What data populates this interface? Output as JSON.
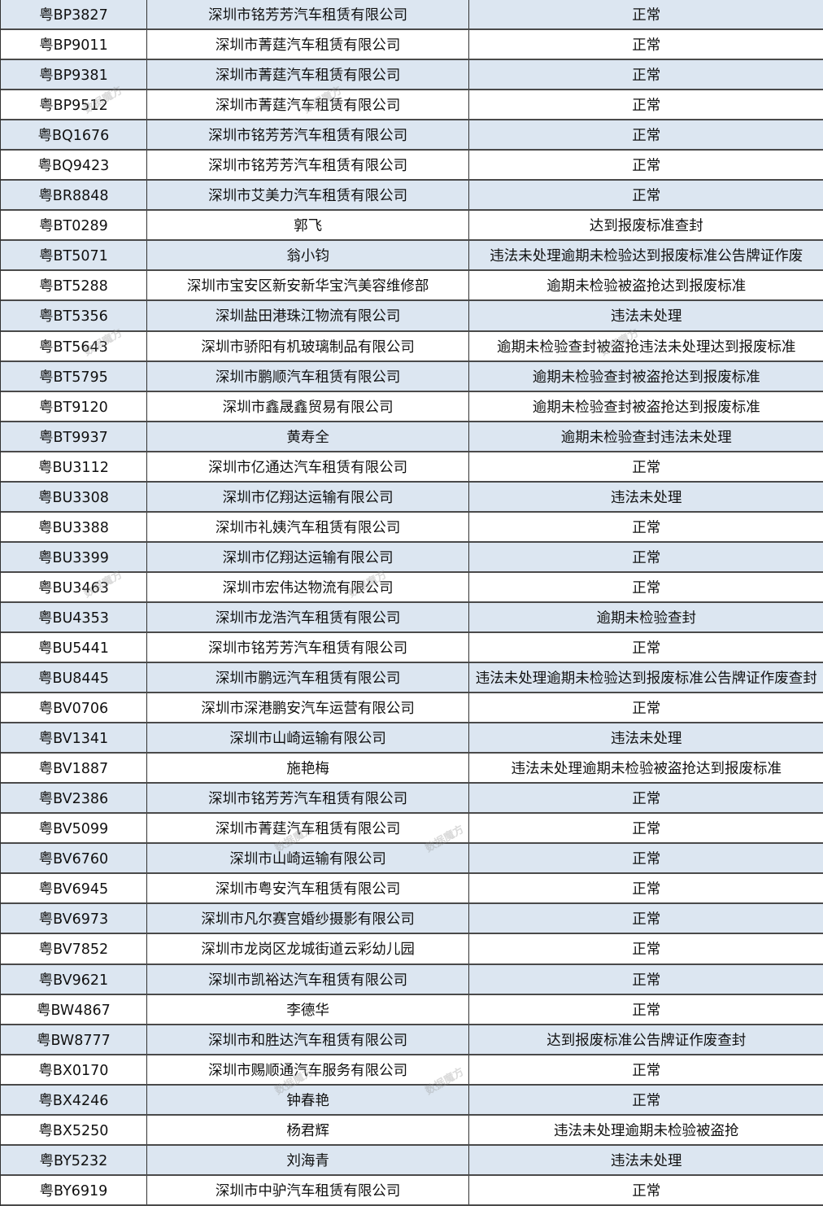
{
  "watermark": "数据魔方",
  "colors": {
    "band": "#dce6f1",
    "border": "#333333"
  },
  "rows": [
    [
      "粤BP3827",
      "深圳市铭芳芳汽车租赁有限公司",
      "正常"
    ],
    [
      "粤BP9011",
      "深圳市菁莛汽车租赁有限公司",
      "正常"
    ],
    [
      "粤BP9381",
      "深圳市菁莛汽车租赁有限公司",
      "正常"
    ],
    [
      "粤BP9512",
      "深圳市菁莛汽车租赁有限公司",
      "正常"
    ],
    [
      "粤BQ1676",
      "深圳市铭芳芳汽车租赁有限公司",
      "正常"
    ],
    [
      "粤BQ9423",
      "深圳市铭芳芳汽车租赁有限公司",
      "正常"
    ],
    [
      "粤BR8848",
      "深圳市艾美力汽车租赁有限公司",
      "正常"
    ],
    [
      "粤BT0289",
      "郭飞",
      "达到报废标准查封"
    ],
    [
      "粤BT5071",
      "翁小钧",
      "违法未处理逾期未检验达到报废标准公告牌证作废"
    ],
    [
      "粤BT5288",
      "深圳市宝安区新安新华宝汽美容维修部",
      "逾期未检验被盗抢达到报废标准"
    ],
    [
      "粤BT5356",
      "深圳盐田港珠江物流有限公司",
      "违法未处理"
    ],
    [
      "粤BT5643",
      "深圳市骄阳有机玻璃制品有限公司",
      "逾期未检验查封被盗抢违法未处理达到报废标准"
    ],
    [
      "粤BT5795",
      "深圳市鹏顺汽车租赁有限公司",
      "逾期未检验查封被盗抢达到报废标准"
    ],
    [
      "粤BT9120",
      "深圳市鑫晟鑫贸易有限公司",
      "逾期未检验查封被盗抢达到报废标准"
    ],
    [
      "粤BT9937",
      "黄寿全",
      "逾期未检验查封违法未处理"
    ],
    [
      "粤BU3112",
      "深圳市亿通达汽车租赁有限公司",
      "正常"
    ],
    [
      "粤BU3308",
      "深圳市亿翔达运输有限公司",
      "违法未处理"
    ],
    [
      "粤BU3388",
      "深圳市礼姨汽车租赁有限公司",
      "正常"
    ],
    [
      "粤BU3399",
      "深圳市亿翔达运输有限公司",
      "正常"
    ],
    [
      "粤BU3463",
      "深圳市宏伟达物流有限公司",
      "正常"
    ],
    [
      "粤BU4353",
      "深圳市龙浩汽车租赁有限公司",
      "逾期未检验查封"
    ],
    [
      "粤BU5441",
      "深圳市铭芳芳汽车租赁有限公司",
      "正常"
    ],
    [
      "粤BU8445",
      "深圳市鹏远汽车租赁有限公司",
      "违法未处理逾期未检验达到报废标准公告牌证作废查封"
    ],
    [
      "粤BV0706",
      "深圳市深港鹏安汽车运营有限公司",
      "正常"
    ],
    [
      "粤BV1341",
      "深圳市山崎运输有限公司",
      "违法未处理"
    ],
    [
      "粤BV1887",
      "施艳梅",
      "违法未处理逾期未检验被盗抢达到报废标准"
    ],
    [
      "粤BV2386",
      "深圳市铭芳芳汽车租赁有限公司",
      "正常"
    ],
    [
      "粤BV5099",
      "深圳市菁莛汽车租赁有限公司",
      "正常"
    ],
    [
      "粤BV6760",
      "深圳市山崎运输有限公司",
      "正常"
    ],
    [
      "粤BV6945",
      "深圳市粤安汽车租赁有限公司",
      "正常"
    ],
    [
      "粤BV6973",
      "深圳市凡尔赛宫婚纱摄影有限公司",
      "正常"
    ],
    [
      "粤BV7852",
      "深圳市龙岗区龙城街道云彩幼儿园",
      "正常"
    ],
    [
      "粤BV9621",
      "深圳市凯裕达汽车租赁有限公司",
      "正常"
    ],
    [
      "粤BW4867",
      "李德华",
      "正常"
    ],
    [
      "粤BW8777",
      "深圳市和胜达汽车租赁有限公司",
      "达到报废标准公告牌证作废查封"
    ],
    [
      "粤BX0170",
      "深圳市赐顺通汽车服务有限公司",
      "正常"
    ],
    [
      "粤BX4246",
      "钟春艳",
      "正常"
    ],
    [
      "粤BX5250",
      "杨君辉",
      "违法未处理逾期未检验被盗抢"
    ],
    [
      "粤BY5232",
      "刘海青",
      "违法未处理"
    ],
    [
      "粤BY6919",
      "深圳市中驴汽车租赁有限公司",
      "正常"
    ]
  ]
}
